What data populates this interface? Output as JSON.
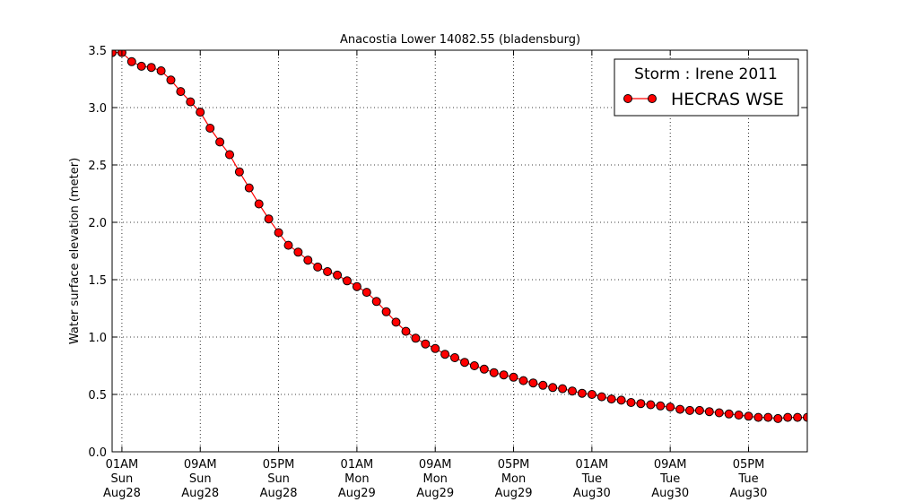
{
  "chart_data": {
    "type": "line",
    "title": "Anacostia Lower 14082.55 (bladensburg)",
    "ylabel": "Water surface elevation (meter)",
    "xlabel": "",
    "ylim": [
      0.0,
      3.5
    ],
    "y_ticks": [
      0.0,
      0.5,
      1.0,
      1.5,
      2.0,
      2.5,
      3.0,
      3.5
    ],
    "y_tick_labels": [
      "0.0",
      "0.5",
      "1.0",
      "1.5",
      "2.0",
      "2.5",
      "3.0",
      "3.5"
    ],
    "xlim": [
      "Aug28 00:00",
      "Aug30 23:00"
    ],
    "x_ticks": [
      {
        "time": "Aug28 01:00",
        "lines": [
          "01AM",
          "Sun",
          "Aug28"
        ]
      },
      {
        "time": "Aug28 09:00",
        "lines": [
          "09AM",
          "Sun",
          "Aug28"
        ]
      },
      {
        "time": "Aug28 17:00",
        "lines": [
          "05PM",
          "Sun",
          "Aug28"
        ]
      },
      {
        "time": "Aug29 01:00",
        "lines": [
          "01AM",
          "Mon",
          "Aug29"
        ]
      },
      {
        "time": "Aug29 09:00",
        "lines": [
          "09AM",
          "Mon",
          "Aug29"
        ]
      },
      {
        "time": "Aug29 17:00",
        "lines": [
          "05PM",
          "Mon",
          "Aug29"
        ]
      },
      {
        "time": "Aug30 01:00",
        "lines": [
          "01AM",
          "Tue",
          "Aug30"
        ]
      },
      {
        "time": "Aug30 09:00",
        "lines": [
          "09AM",
          "Tue",
          "Aug30"
        ]
      },
      {
        "time": "Aug30 17:00",
        "lines": [
          "05PM",
          "Tue",
          "Aug30"
        ]
      }
    ],
    "grid": true,
    "legend": {
      "title": "Storm : Irene 2011",
      "placement": "top-right"
    },
    "series": [
      {
        "name": "HECRAS WSE",
        "color": "#ff0000",
        "marker": "circle",
        "x": [
          "Aug28 00:00",
          "Aug28 01:00",
          "Aug28 02:00",
          "Aug28 03:00",
          "Aug28 04:00",
          "Aug28 05:00",
          "Aug28 06:00",
          "Aug28 07:00",
          "Aug28 08:00",
          "Aug28 09:00",
          "Aug28 10:00",
          "Aug28 11:00",
          "Aug28 12:00",
          "Aug28 13:00",
          "Aug28 14:00",
          "Aug28 15:00",
          "Aug28 16:00",
          "Aug28 17:00",
          "Aug28 18:00",
          "Aug28 19:00",
          "Aug28 20:00",
          "Aug28 21:00",
          "Aug28 22:00",
          "Aug28 23:00",
          "Aug29 00:00",
          "Aug29 01:00",
          "Aug29 02:00",
          "Aug29 03:00",
          "Aug29 04:00",
          "Aug29 05:00",
          "Aug29 06:00",
          "Aug29 07:00",
          "Aug29 08:00",
          "Aug29 09:00",
          "Aug29 10:00",
          "Aug29 11:00",
          "Aug29 12:00",
          "Aug29 13:00",
          "Aug29 14:00",
          "Aug29 15:00",
          "Aug29 16:00",
          "Aug29 17:00",
          "Aug29 18:00",
          "Aug29 19:00",
          "Aug29 20:00",
          "Aug29 21:00",
          "Aug29 22:00",
          "Aug29 23:00",
          "Aug30 00:00",
          "Aug30 01:00",
          "Aug30 02:00",
          "Aug30 03:00",
          "Aug30 04:00",
          "Aug30 05:00",
          "Aug30 06:00",
          "Aug30 07:00",
          "Aug30 08:00",
          "Aug30 09:00",
          "Aug30 10:00",
          "Aug30 11:00",
          "Aug30 12:00",
          "Aug30 13:00",
          "Aug30 14:00",
          "Aug30 15:00",
          "Aug30 16:00",
          "Aug30 17:00",
          "Aug30 18:00",
          "Aug30 19:00",
          "Aug30 20:00",
          "Aug30 21:00",
          "Aug30 22:00",
          "Aug30 23:00"
        ],
        "values": [
          3.48,
          3.48,
          3.4,
          3.36,
          3.35,
          3.32,
          3.24,
          3.14,
          3.05,
          2.96,
          2.82,
          2.7,
          2.59,
          2.44,
          2.3,
          2.16,
          2.03,
          1.91,
          1.8,
          1.74,
          1.67,
          1.61,
          1.57,
          1.54,
          1.49,
          1.44,
          1.39,
          1.31,
          1.22,
          1.13,
          1.05,
          0.99,
          0.94,
          0.9,
          0.85,
          0.82,
          0.78,
          0.75,
          0.72,
          0.69,
          0.67,
          0.65,
          0.62,
          0.6,
          0.58,
          0.56,
          0.55,
          0.53,
          0.51,
          0.5,
          0.48,
          0.46,
          0.45,
          0.43,
          0.42,
          0.41,
          0.4,
          0.39,
          0.37,
          0.36,
          0.36,
          0.35,
          0.34,
          0.33,
          0.32,
          0.31,
          0.3,
          0.3,
          0.29,
          0.3,
          0.3,
          0.3
        ]
      }
    ]
  }
}
